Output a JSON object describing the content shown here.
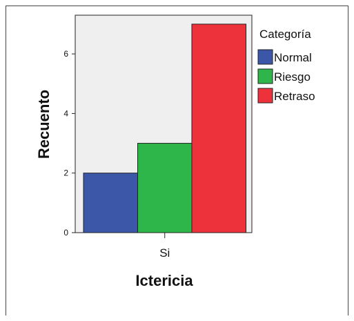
{
  "chart_data": {
    "type": "bar",
    "categories": [
      "Si"
    ],
    "series": [
      {
        "name": "Normal",
        "color": "#3C56A8",
        "values": [
          2
        ]
      },
      {
        "name": "Riesgo",
        "color": "#2EB64A",
        "values": [
          3
        ]
      },
      {
        "name": "Retraso",
        "color": "#EE323B",
        "values": [
          7
        ]
      }
    ],
    "xlabel": "Ictericia",
    "ylabel": "Recuento",
    "ylim": [
      0,
      7.3
    ],
    "yticks": [
      0,
      2,
      4,
      6
    ],
    "legend": {
      "title": "Categoría",
      "placement": "right"
    },
    "grid": false,
    "plot_background": "#EFEFEF"
  }
}
